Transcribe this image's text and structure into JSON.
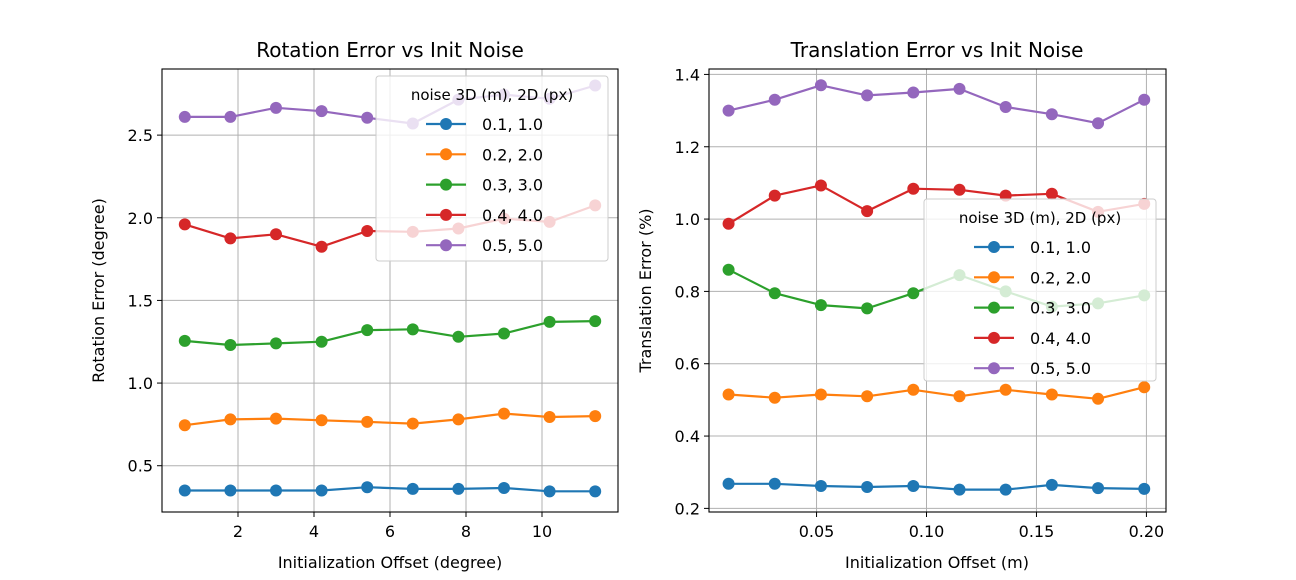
{
  "chart_data": [
    {
      "type": "line",
      "title": "Rotation Error vs Init Noise",
      "xlabel": "Initialization Offset (degree)",
      "ylabel": "Rotation Error (degree)",
      "xlim": [
        0.0,
        12.0
      ],
      "ylim": [
        0.22,
        2.9
      ],
      "xticks": [
        2,
        4,
        6,
        8,
        10
      ],
      "xtick_labels": [
        "2",
        "4",
        "6",
        "8",
        "10"
      ],
      "yticks": [
        0.5,
        1.0,
        1.5,
        2.0,
        2.5
      ],
      "ytick_labels": [
        "0.5",
        "1.0",
        "1.5",
        "2.0",
        "2.5"
      ],
      "grid": true,
      "legend_title": "noise 3D (m), 2D (px)",
      "legend_position": "upper-right",
      "x": [
        0.6,
        1.8,
        3.0,
        4.2,
        5.4,
        6.6,
        7.8,
        9.0,
        10.2,
        11.4
      ],
      "series": [
        {
          "name": "0.1, 1.0",
          "color": "#1f77b4",
          "values": [
            0.35,
            0.35,
            0.35,
            0.35,
            0.37,
            0.36,
            0.36,
            0.365,
            0.345,
            0.345
          ]
        },
        {
          "name": "0.2, 2.0",
          "color": "#ff7f0e",
          "values": [
            0.745,
            0.78,
            0.785,
            0.775,
            0.765,
            0.755,
            0.78,
            0.815,
            0.795,
            0.8
          ]
        },
        {
          "name": "0.3, 3.0",
          "color": "#2ca02c",
          "values": [
            1.255,
            1.23,
            1.24,
            1.25,
            1.32,
            1.325,
            1.28,
            1.3,
            1.37,
            1.375
          ]
        },
        {
          "name": "0.4, 4.0",
          "color": "#d62728",
          "values": [
            1.96,
            1.875,
            1.9,
            1.825,
            1.92,
            1.915,
            1.935,
            1.995,
            1.975,
            2.075
          ]
        },
        {
          "name": "0.5, 5.0",
          "color": "#9467bd",
          "values": [
            2.61,
            2.61,
            2.665,
            2.645,
            2.605,
            2.57,
            2.715,
            2.745,
            2.72,
            2.8
          ]
        }
      ]
    },
    {
      "type": "line",
      "title": "Translation Error vs Init Noise",
      "xlabel": "Initialization Offset (m)",
      "ylabel": "Translation Error (%)",
      "xlim": [
        0.0011,
        0.2089
      ],
      "ylim": [
        0.19,
        1.415
      ],
      "xticks": [
        0.05,
        0.1,
        0.15,
        0.2
      ],
      "xtick_labels": [
        "0.05",
        "0.10",
        "0.15",
        "0.20"
      ],
      "yticks": [
        0.2,
        0.4,
        0.6,
        0.8,
        1.0,
        1.2,
        1.4
      ],
      "ytick_labels": [
        "0.2",
        "0.4",
        "0.6",
        "0.8",
        "1.0",
        "1.2",
        "1.4"
      ],
      "grid": true,
      "legend_title": "noise 3D (m), 2D (px)",
      "legend_position": "center-right",
      "x": [
        0.01,
        0.031,
        0.052,
        0.073,
        0.094,
        0.115,
        0.136,
        0.157,
        0.178,
        0.199
      ],
      "series": [
        {
          "name": "0.1, 1.0",
          "color": "#1f77b4",
          "values": [
            0.268,
            0.268,
            0.262,
            0.259,
            0.262,
            0.252,
            0.252,
            0.265,
            0.256,
            0.254
          ]
        },
        {
          "name": "0.2, 2.0",
          "color": "#ff7f0e",
          "values": [
            0.515,
            0.506,
            0.515,
            0.51,
            0.528,
            0.51,
            0.528,
            0.515,
            0.503,
            0.535
          ]
        },
        {
          "name": "0.3, 3.0",
          "color": "#2ca02c",
          "values": [
            0.86,
            0.795,
            0.762,
            0.753,
            0.795,
            0.845,
            0.8,
            0.758,
            0.767,
            0.789
          ]
        },
        {
          "name": "0.4, 4.0",
          "color": "#d62728",
          "values": [
            0.987,
            1.065,
            1.093,
            1.022,
            1.084,
            1.081,
            1.065,
            1.07,
            1.02,
            1.042
          ]
        },
        {
          "name": "0.5, 5.0",
          "color": "#9467bd",
          "values": [
            1.3,
            1.33,
            1.37,
            1.342,
            1.35,
            1.36,
            1.31,
            1.29,
            1.265,
            1.33
          ]
        }
      ]
    }
  ]
}
